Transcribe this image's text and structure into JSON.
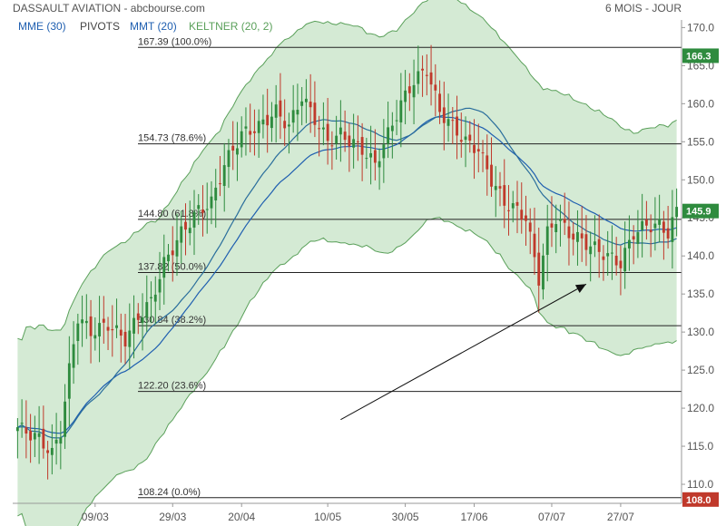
{
  "header": {
    "title": "DASSAULT AVIATION - abcbourse.com",
    "period": "6 MOIS - JOUR"
  },
  "indicators": [
    {
      "label": "MME (30)",
      "color": "#1f5fb0"
    },
    {
      "label": "PIVOTS",
      "color": "#444444"
    },
    {
      "label": "MMT (20)",
      "color": "#1f5fb0"
    },
    {
      "label": "KELTNER (20, 2)",
      "color": "#5aa05a"
    }
  ],
  "colors": {
    "up": "#2e8b3e",
    "down": "#c0392b",
    "band_fill": "#cfe8cf",
    "band_stroke": "#5aa05a",
    "mme": "#1f5fb0",
    "mmt": "#2a6e9c",
    "last_tag": "#2e8b3e",
    "high_tag": "#2e8b3e",
    "low_tag": "#c0392b"
  },
  "chart_data": {
    "type": "candlestick",
    "ylim": [
      107.5,
      171
    ],
    "y_ticks": [
      "110.0",
      "115.0",
      "120.0",
      "125.0",
      "130.0",
      "135.0",
      "140.0",
      "145.0",
      "150.0",
      "155.0",
      "160.0",
      "165.0",
      "170.0"
    ],
    "x_ticks": [
      {
        "label": "09/03",
        "index": 18
      },
      {
        "label": "29/03",
        "index": 36
      },
      {
        "label": "20/04",
        "index": 52
      },
      {
        "label": "10/05",
        "index": 72
      },
      {
        "label": "30/05",
        "index": 90
      },
      {
        "label": "17/06",
        "index": 106
      },
      {
        "label": "07/07",
        "index": 124
      },
      {
        "label": "27/07",
        "index": 140
      }
    ],
    "fibonacci": [
      {
        "value": 167.39,
        "label": "167.39  (100.0%)"
      },
      {
        "value": 154.73,
        "label": "154.73  (78.6%)"
      },
      {
        "value": 144.8,
        "label": "144.80  (61.8%)"
      },
      {
        "value": 137.82,
        "label": "137.82  (50.0%)"
      },
      {
        "value": 130.84,
        "label": "130.84  (38.2%)"
      },
      {
        "value": 122.2,
        "label": "122.20  (23.6%)"
      },
      {
        "value": 108.24,
        "label": "108.24  (0.0%)"
      }
    ],
    "price_tags": [
      {
        "label": "166.3",
        "value": 166.3,
        "kind": "high"
      },
      {
        "label": "145.9",
        "value": 145.9,
        "kind": "last"
      },
      {
        "label": "108.0",
        "value": 108.0,
        "kind": "low"
      }
    ],
    "arrow": {
      "from": [
        75,
        118.5
      ],
      "to": [
        132,
        136.3
      ]
    },
    "n_sessions": 154,
    "close_keypoints": [
      [
        0,
        117.5
      ],
      [
        5,
        116
      ],
      [
        8,
        114
      ],
      [
        10,
        117
      ],
      [
        12,
        125
      ],
      [
        14,
        132
      ],
      [
        17,
        130
      ],
      [
        21,
        131
      ],
      [
        25,
        129
      ],
      [
        28,
        132
      ],
      [
        31,
        134
      ],
      [
        34,
        139
      ],
      [
        38,
        143
      ],
      [
        42,
        146
      ],
      [
        45,
        147
      ],
      [
        48,
        152
      ],
      [
        52,
        156
      ],
      [
        56,
        157
      ],
      [
        60,
        159
      ],
      [
        63,
        157
      ],
      [
        66,
        161
      ],
      [
        69,
        158
      ],
      [
        72,
        155
      ],
      [
        75,
        156
      ],
      [
        80,
        154
      ],
      [
        83,
        152
      ],
      [
        86,
        156
      ],
      [
        89,
        160
      ],
      [
        92,
        163
      ],
      [
        95,
        164.5
      ],
      [
        98,
        159
      ],
      [
        101,
        157
      ],
      [
        104,
        155
      ],
      [
        107,
        154
      ],
      [
        110,
        150
      ],
      [
        113,
        147
      ],
      [
        116,
        146
      ],
      [
        118,
        145
      ],
      [
        121,
        137
      ],
      [
        123,
        143
      ],
      [
        125,
        145
      ],
      [
        128,
        143
      ],
      [
        131,
        142
      ],
      [
        134,
        141
      ],
      [
        137,
        140
      ],
      [
        140,
        139
      ],
      [
        143,
        143
      ],
      [
        146,
        144
      ],
      [
        149,
        144
      ],
      [
        151,
        143
      ],
      [
        153,
        145.9
      ]
    ]
  }
}
